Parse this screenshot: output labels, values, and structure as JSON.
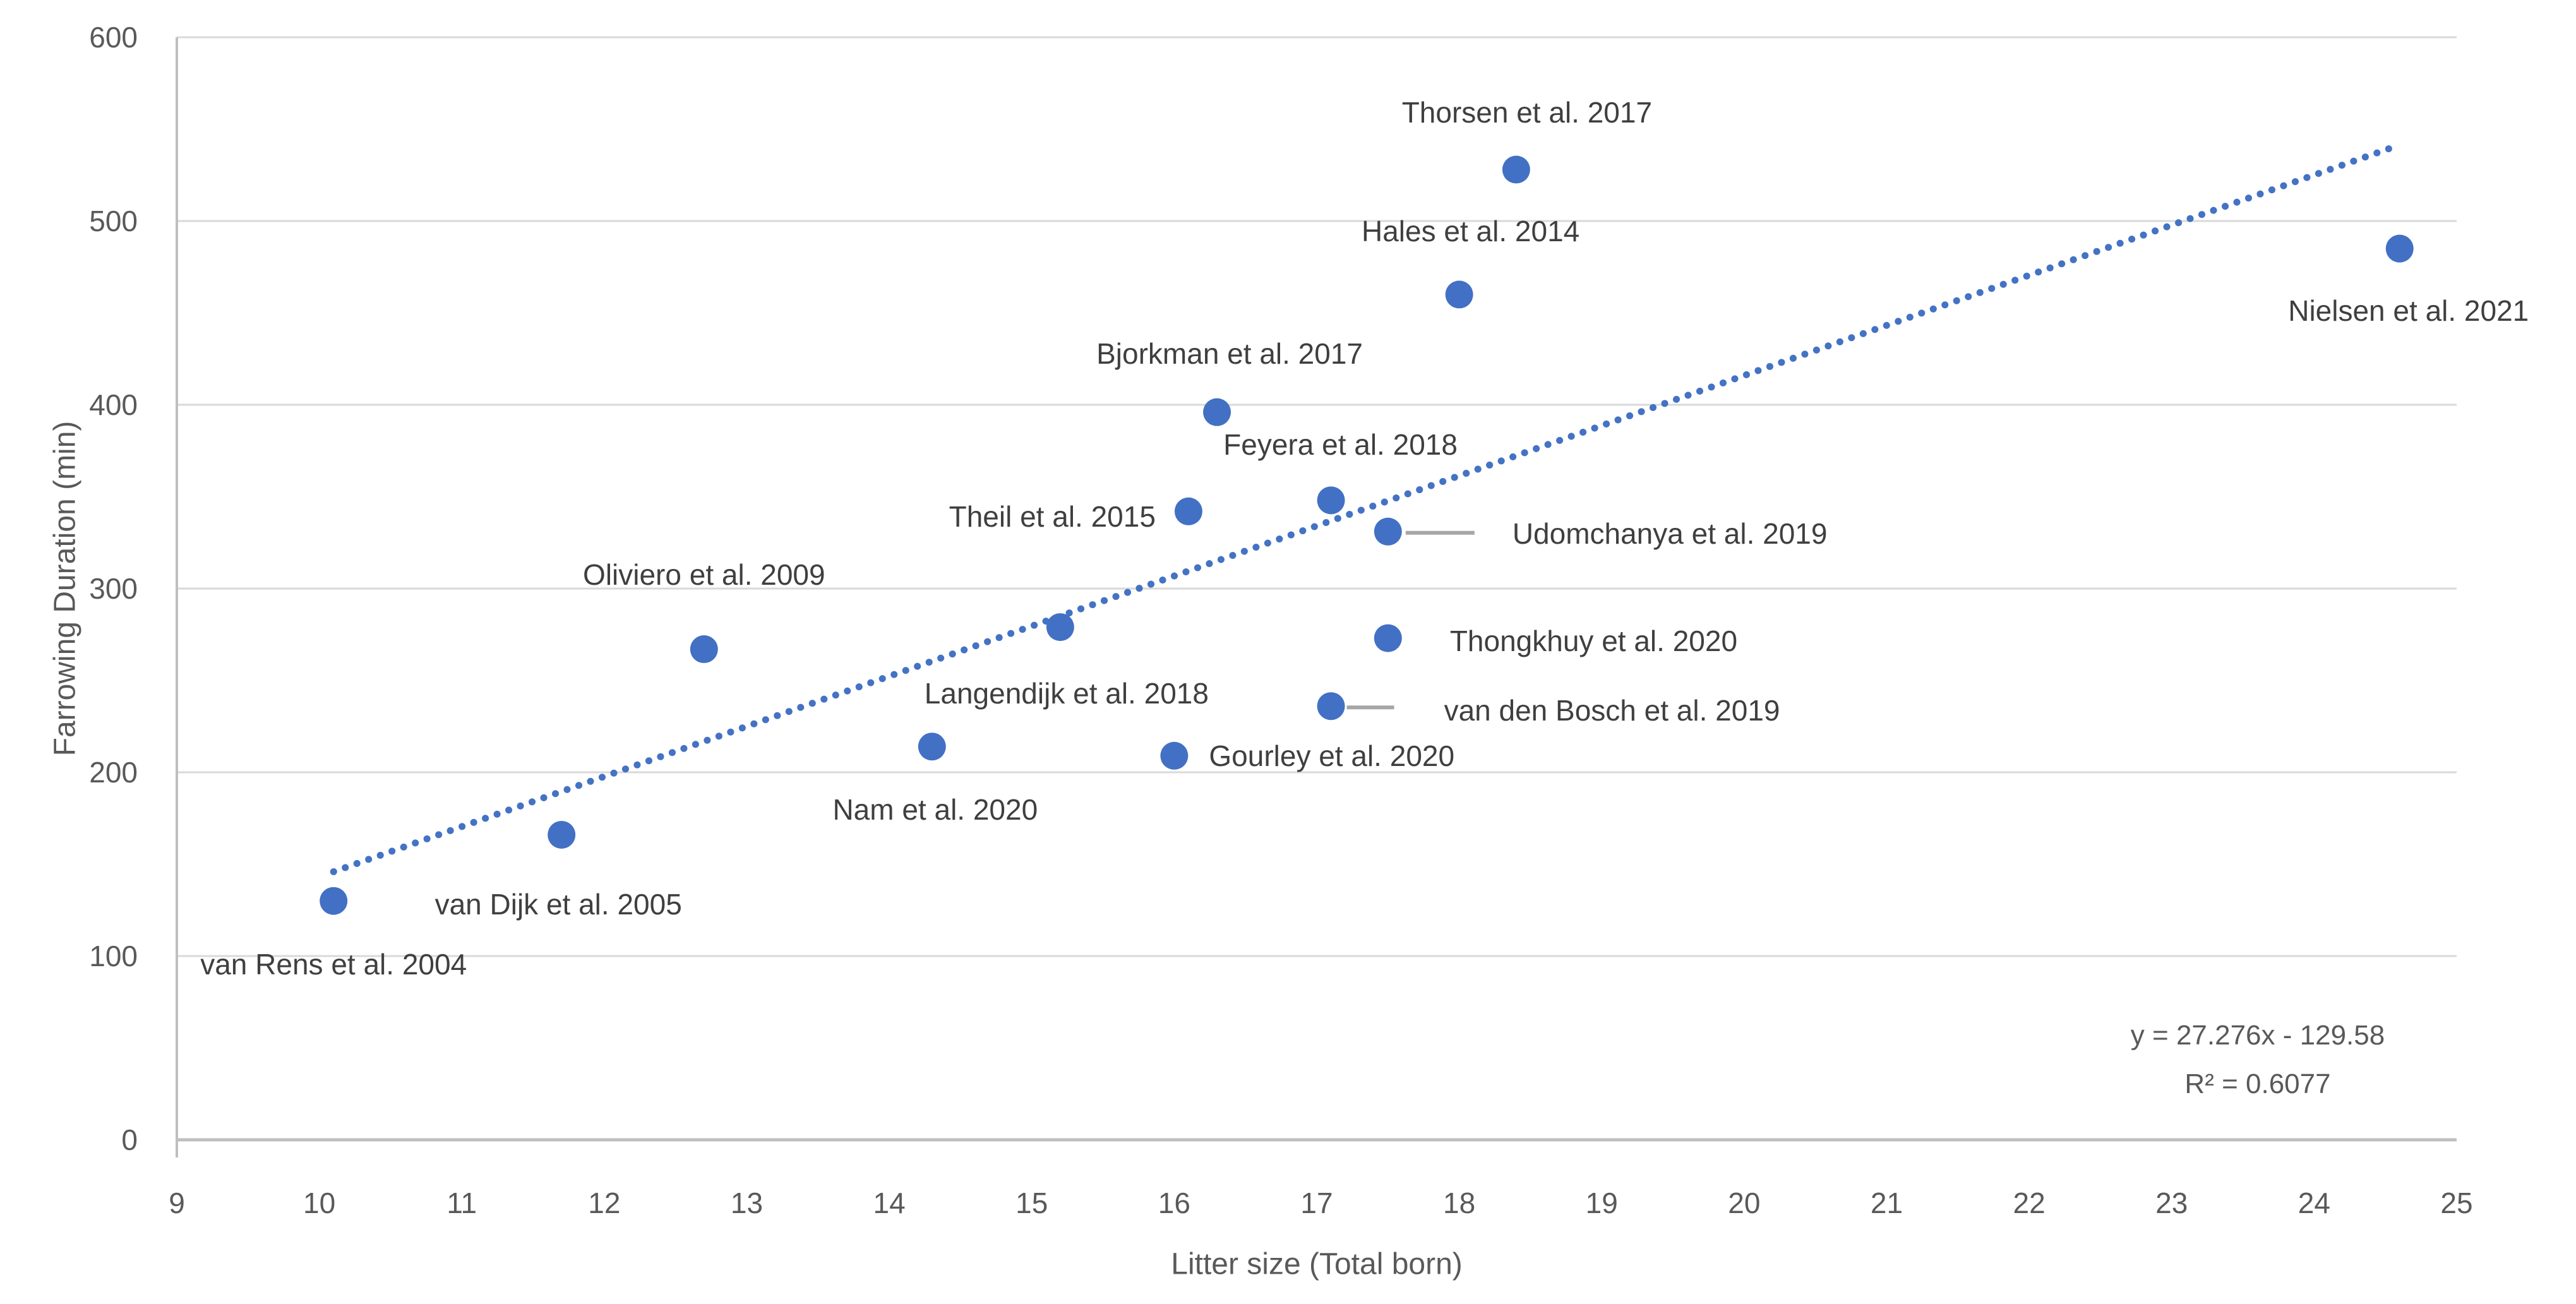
{
  "chart_data": {
    "type": "scatter",
    "title": "",
    "xlabel": "Litter size (Total born)",
    "ylabel": "Farrowing Duration (min)",
    "xlim": [
      9,
      25
    ],
    "ylim": [
      0,
      600
    ],
    "x_ticks": [
      9,
      10,
      11,
      12,
      13,
      14,
      15,
      16,
      17,
      18,
      19,
      20,
      21,
      22,
      23,
      24,
      25
    ],
    "y_ticks": [
      0,
      100,
      200,
      300,
      400,
      500,
      600
    ],
    "grid": "horizontal-only",
    "legend": "none",
    "series": [
      {
        "name": "studies",
        "points": [
          {
            "label": "van Rens et al. 2004",
            "x": 10.1,
            "y": 130,
            "anchor": "below",
            "dx": 0,
            "dy": 100
          },
          {
            "label": "van Dijk et al. 2005",
            "x": 11.7,
            "y": 166,
            "anchor": "below",
            "dx": -5,
            "dy": 110
          },
          {
            "label": "Oliviero et al. 2009",
            "x": 12.7,
            "y": 267,
            "anchor": "above",
            "dx": 0,
            "dy": -118
          },
          {
            "label": "Nam et al. 2020",
            "x": 14.3,
            "y": 214,
            "anchor": "below",
            "dx": 5,
            "dy": 100
          },
          {
            "label": "Langendijk et al. 2018",
            "x": 15.2,
            "y": 279,
            "anchor": "below",
            "dx": 10,
            "dy": 105
          },
          {
            "label": "Gourley et al. 2020",
            "x": 16.0,
            "y": 209,
            "anchor": "right",
            "dx": 55,
            "dy": 0
          },
          {
            "label": "Theil et al. 2015",
            "x": 16.1,
            "y": 342,
            "anchor": "left",
            "dx": -52,
            "dy": 8
          },
          {
            "label": "Bjorkman et al. 2017",
            "x": 16.3,
            "y": 396,
            "anchor": "above",
            "dx": 20,
            "dy": -93
          },
          {
            "label": "Feyera et al. 2018",
            "x": 17.1,
            "y": 348,
            "anchor": "above",
            "dx": 15,
            "dy": -88
          },
          {
            "label": "van den Bosch et al. 2019",
            "x": 17.1,
            "y": 236,
            "anchor": "right",
            "dx": 179,
            "dy": 7,
            "leader": [
              25,
              100
            ]
          },
          {
            "label": "Udomchanya et al. 2019",
            "x": 17.5,
            "y": 331,
            "anchor": "right",
            "dx": 197,
            "dy": 3,
            "leader": [
              28,
              137
            ]
          },
          {
            "label": "Thongkhuy et al. 2020",
            "x": 17.5,
            "y": 273,
            "anchor": "right",
            "dx": 98,
            "dy": 4
          },
          {
            "label": "Hales et al. 2014",
            "x": 18.0,
            "y": 460,
            "anchor": "above",
            "dx": 18,
            "dy": -100
          },
          {
            "label": "Thorsen et al. 2017",
            "x": 18.4,
            "y": 528,
            "anchor": "above",
            "dx": 17,
            "dy": -91
          },
          {
            "label": "Nielsen et al. 2021",
            "x": 24.6,
            "y": 485,
            "anchor": "below",
            "dx": 14,
            "dy": 98
          }
        ]
      }
    ],
    "trendline": {
      "type": "linear",
      "slope": 27.276,
      "intercept": -129.58,
      "x_start": 10.1,
      "x_end": 24.6,
      "style": "dotted",
      "equation": "y = 27.276x - 129.58",
      "r_squared": "R² = 0.6077"
    },
    "colors": {
      "marker": "#4270C4",
      "trendline": "#4472C4",
      "gridline": "#D9D9D9",
      "axis_line": "#BFBFBF",
      "leader_line": "#A6A6A6",
      "tick_text": "#595959",
      "axis_title_text": "#595959",
      "data_label_text": "#3f3f3f",
      "equation_text": "#595959"
    }
  }
}
